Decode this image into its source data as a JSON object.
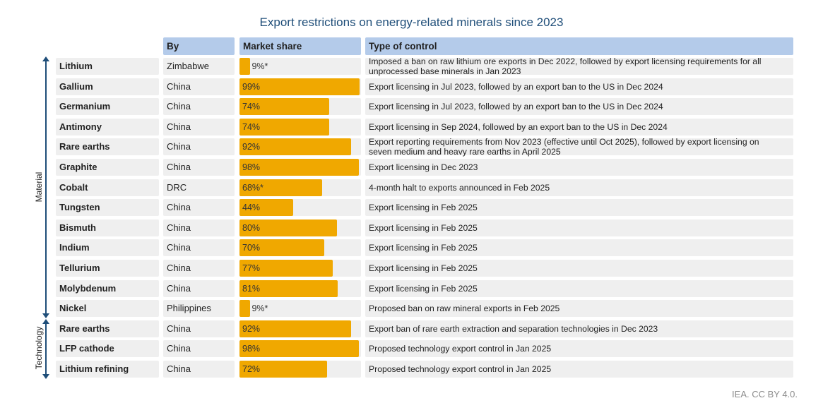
{
  "title": "Export restrictions on energy-related minerals since 2023",
  "credit": "IEA. CC BY 4.0.",
  "headers": {
    "by": "By",
    "share": "Market share",
    "type": "Type of control"
  },
  "groups": [
    {
      "label": "Material",
      "first_row": 0,
      "last_row": 12
    },
    {
      "label": "Technology",
      "first_row": 13,
      "last_row": 15
    }
  ],
  "colors": {
    "bar": "#f0a800",
    "header": "#b4cbea",
    "row": "#efefef",
    "title": "#1f4e79"
  },
  "chart_data": {
    "type": "table",
    "title": "Export restrictions on energy-related minerals since 2023",
    "columns": [
      "",
      "By",
      "Market share",
      "Type of control"
    ],
    "rows": [
      {
        "item": "Lithium",
        "by": "Zimbabwe",
        "share": 9,
        "share_label": "9%*",
        "control": "Imposed a ban on raw lithium ore exports in Dec 2022, followed by export licensing requirements for all unprocessed base minerals in Jan 2023"
      },
      {
        "item": "Gallium",
        "by": "China",
        "share": 99,
        "share_label": "99%",
        "control": "Export licensing in Jul 2023, followed by an export ban to the US in Dec 2024"
      },
      {
        "item": "Germanium",
        "by": "China",
        "share": 74,
        "share_label": "74%",
        "control": "Export licensing in Jul 2023, followed by an export ban to the US in Dec 2024"
      },
      {
        "item": "Antimony",
        "by": "China",
        "share": 74,
        "share_label": "74%",
        "control": "Export licensing in Sep 2024, followed by an export ban to the US in Dec 2024"
      },
      {
        "item": "Rare earths",
        "by": "China",
        "share": 92,
        "share_label": "92%",
        "control": "Export reporting requirements from Nov 2023 (effective until Oct 2025), followed by export licensing on seven medium and heavy rare earths in April 2025"
      },
      {
        "item": "Graphite",
        "by": "China",
        "share": 98,
        "share_label": "98%",
        "control": "Export licensing in Dec 2023"
      },
      {
        "item": "Cobalt",
        "by": "DRC",
        "share": 68,
        "share_label": "68%*",
        "control": "4-month halt to exports announced in Feb 2025"
      },
      {
        "item": "Tungsten",
        "by": "China",
        "share": 44,
        "share_label": "44%",
        "control": "Export licensing in Feb 2025"
      },
      {
        "item": "Bismuth",
        "by": "China",
        "share": 80,
        "share_label": "80%",
        "control": "Export licensing in Feb 2025"
      },
      {
        "item": "Indium",
        "by": "China",
        "share": 70,
        "share_label": "70%",
        "control": "Export licensing in Feb 2025"
      },
      {
        "item": "Tellurium",
        "by": "China",
        "share": 77,
        "share_label": "77%",
        "control": "Export licensing in Feb 2025"
      },
      {
        "item": "Molybdenum",
        "by": "China",
        "share": 81,
        "share_label": "81%",
        "control": "Export licensing in Feb 2025"
      },
      {
        "item": "Nickel",
        "by": "Philippines",
        "share": 9,
        "share_label": "9%*",
        "control": "Proposed ban on raw mineral exports in Feb 2025"
      },
      {
        "item": "Rare earths",
        "by": "China",
        "share": 92,
        "share_label": "92%",
        "control": "Export ban of rare earth extraction and separation technologies in Dec 2023"
      },
      {
        "item": "LFP cathode",
        "by": "China",
        "share": 98,
        "share_label": "98%",
        "control": "Proposed technology export control in Jan 2025"
      },
      {
        "item": "Lithium refining",
        "by": "China",
        "share": 72,
        "share_label": "72%",
        "control": "Proposed technology export control in Jan 2025"
      }
    ]
  }
}
